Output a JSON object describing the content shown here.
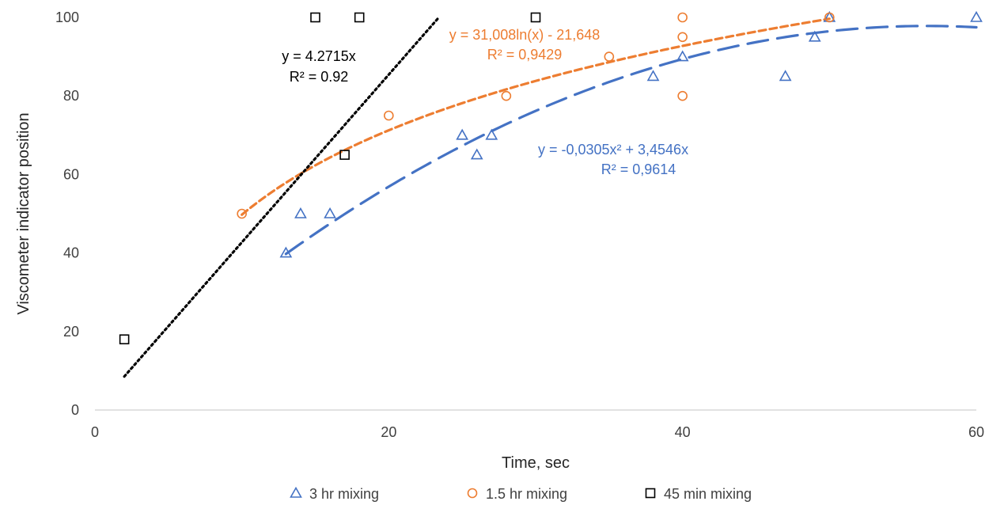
{
  "chart_data": {
    "type": "scatter",
    "title": "",
    "xlabel": "Time, sec",
    "ylabel": "Viscometer indicator position",
    "xlim": [
      0,
      60
    ],
    "ylim": [
      0,
      100
    ],
    "x_ticks": [
      "0",
      "20",
      "40",
      "60"
    ],
    "y_ticks": [
      "0",
      "20",
      "40",
      "60",
      "80",
      "100"
    ],
    "grid": false,
    "legend_position": "bottom",
    "series": [
      {
        "name": "3 hr mixing",
        "marker": "triangle",
        "color": "#4472C4",
        "points": [
          {
            "x": 13,
            "y": 40
          },
          {
            "x": 14,
            "y": 50
          },
          {
            "x": 16,
            "y": 50
          },
          {
            "x": 25,
            "y": 70
          },
          {
            "x": 26,
            "y": 65
          },
          {
            "x": 27,
            "y": 70
          },
          {
            "x": 38,
            "y": 85
          },
          {
            "x": 40,
            "y": 90
          },
          {
            "x": 47,
            "y": 85
          },
          {
            "x": 49,
            "y": 95
          },
          {
            "x": 50,
            "y": 100
          },
          {
            "x": 60,
            "y": 100
          }
        ],
        "trendline": {
          "type": "polynomial",
          "coefficients": {
            "a2": -0.0305,
            "a1": 3.4546,
            "a0": 0
          },
          "x_range": [
            13,
            60
          ],
          "style": "long-dash",
          "equation_label": "y = -0,0305x² + 3,4546x",
          "r2_label": "R² = 0,9614"
        }
      },
      {
        "name": "1.5 hr mixing",
        "marker": "circle",
        "color": "#ED7D31",
        "points": [
          {
            "x": 10,
            "y": 50
          },
          {
            "x": 20,
            "y": 75
          },
          {
            "x": 28,
            "y": 80
          },
          {
            "x": 35,
            "y": 90
          },
          {
            "x": 40,
            "y": 80
          },
          {
            "x": 40,
            "y": 95
          },
          {
            "x": 40,
            "y": 100
          },
          {
            "x": 50,
            "y": 100
          }
        ],
        "trendline": {
          "type": "logarithmic",
          "coefficients": {
            "a": 31.008,
            "b": -21.648
          },
          "x_range": [
            10,
            50
          ],
          "style": "short-dash",
          "equation_label": "y = 31,008ln(x) - 21,648",
          "r2_label": "R² = 0,9429"
        }
      },
      {
        "name": "45 min mixing",
        "marker": "square",
        "color": "#000000",
        "points": [
          {
            "x": 2,
            "y": 18
          },
          {
            "x": 15,
            "y": 100
          },
          {
            "x": 17,
            "y": 65
          },
          {
            "x": 18,
            "y": 100
          },
          {
            "x": 30,
            "y": 100
          }
        ],
        "trendline": {
          "type": "linear",
          "coefficients": {
            "slope": 4.2715,
            "intercept": 0
          },
          "x_range": [
            2,
            23.4
          ],
          "style": "dotted",
          "equation_label": "y = 4.2715x",
          "r2_label": "R² = 0.92"
        }
      }
    ]
  }
}
